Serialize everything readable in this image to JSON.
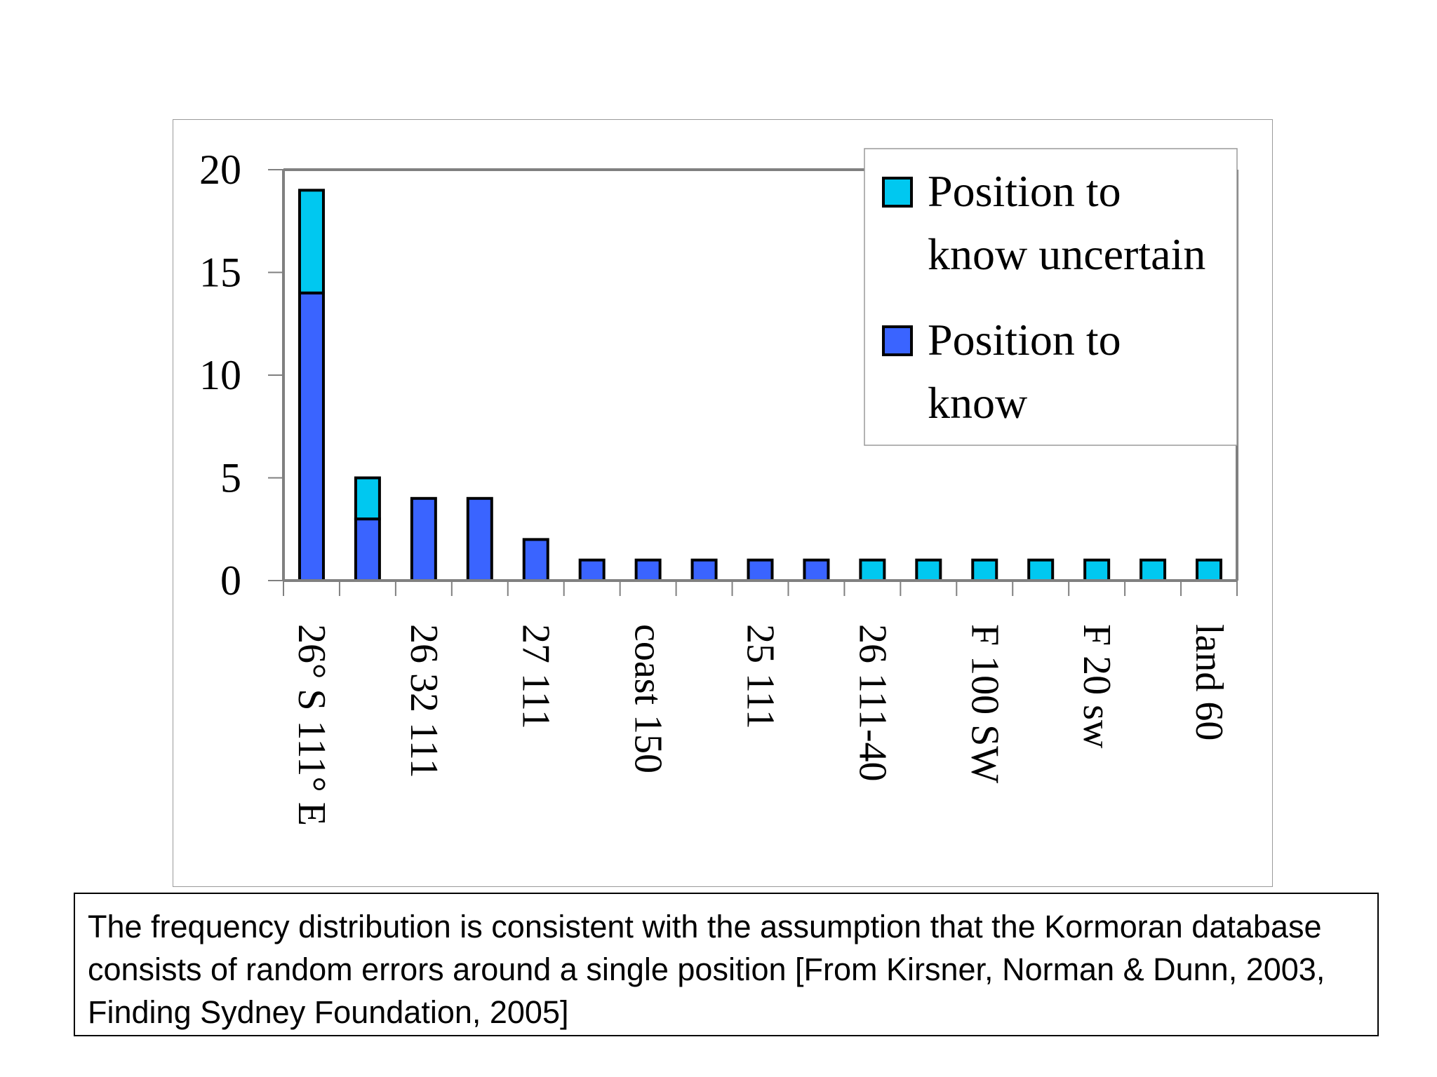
{
  "chart_data": {
    "type": "bar",
    "stacked": true,
    "ylim": [
      0,
      20
    ],
    "yticks": [
      0,
      5,
      10,
      15,
      20
    ],
    "categories": [
      "26° S 111° E",
      "",
      "26 32 111",
      "",
      "27 111",
      "",
      "coast 150",
      "",
      "25 111",
      "",
      "26 111-40",
      "",
      "F 100 SW",
      "",
      "F 20 sw",
      "",
      "land 60"
    ],
    "series": [
      {
        "name": "Position to know",
        "color": "#3a64ff",
        "values": [
          14,
          3,
          4,
          4,
          2,
          1,
          1,
          1,
          1,
          1,
          0,
          0,
          0,
          0,
          0,
          0,
          0
        ]
      },
      {
        "name": "Position to know uncertain",
        "color": "#00c8f0",
        "values": [
          5,
          2,
          0,
          0,
          0,
          0,
          0,
          0,
          0,
          0,
          1,
          1,
          1,
          1,
          1,
          1,
          1
        ]
      }
    ],
    "legend": {
      "placement": "top-right",
      "items": [
        {
          "line1": "Position to",
          "line2": "know uncertain",
          "color": "#00c8f0"
        },
        {
          "line1": "Position to",
          "line2": "know",
          "color": "#3a64ff"
        }
      ]
    }
  },
  "caption": "The frequency distribution is consistent with the assumption that the Kormoran database consists of random errors around a single position [From Kirsner, Norman & Dunn, 2003, Finding Sydney Foundation, 2005]"
}
